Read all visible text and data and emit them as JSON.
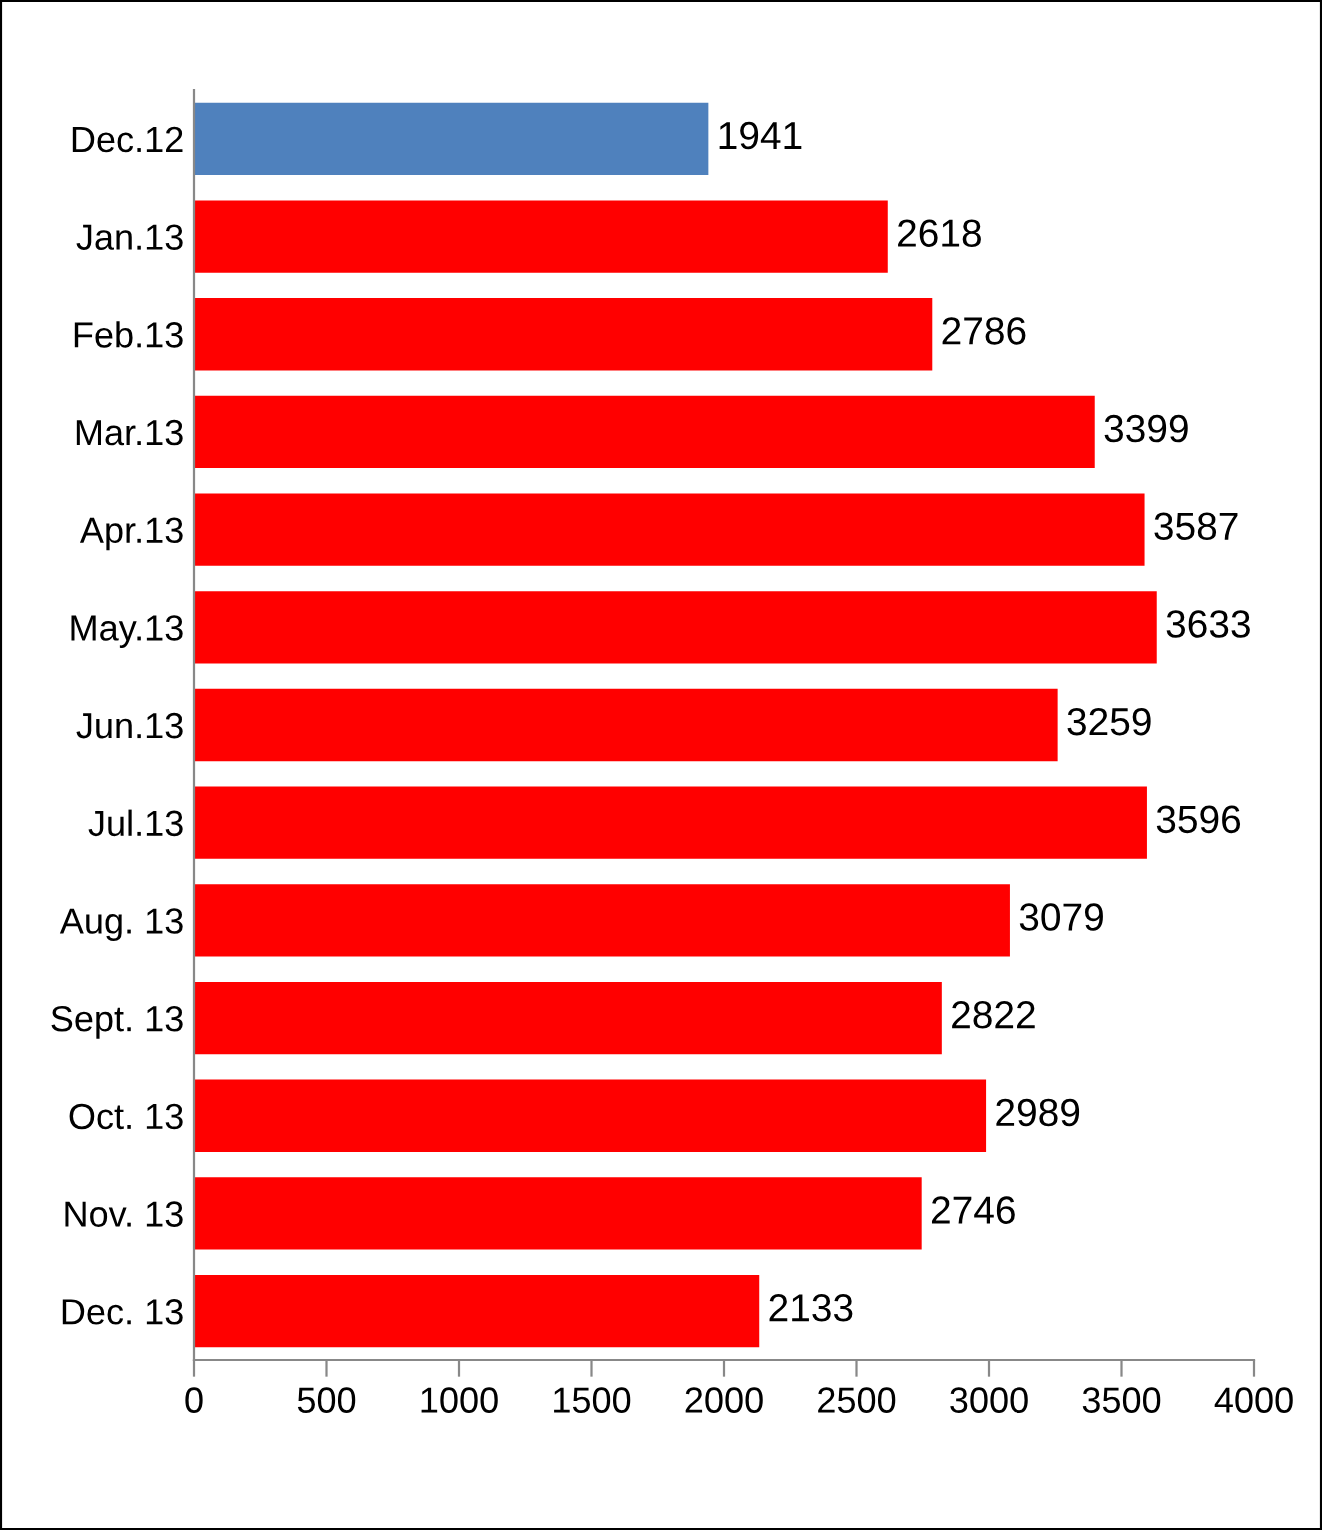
{
  "chart_data": {
    "type": "bar",
    "orientation": "horizontal",
    "categories": [
      "Dec.12",
      "Jan.13",
      "Feb.13",
      "Mar.13",
      "Apr.13",
      "May.13",
      "Jun.13",
      "Jul.13",
      "Aug. 13",
      "Sept. 13",
      "Oct. 13",
      "Nov. 13",
      "Dec. 13"
    ],
    "values": [
      1941,
      2618,
      2786,
      3399,
      3587,
      3633,
      3259,
      3596,
      3079,
      2822,
      2989,
      2746,
      2133
    ],
    "colors": [
      "#4f81bd",
      "#ff0000",
      "#ff0000",
      "#ff0000",
      "#ff0000",
      "#ff0000",
      "#ff0000",
      "#ff0000",
      "#ff0000",
      "#ff0000",
      "#ff0000",
      "#ff0000",
      "#ff0000"
    ],
    "xlim": [
      0,
      4000
    ],
    "xticks": [
      0,
      500,
      1000,
      1500,
      2000,
      2500,
      3000,
      3500,
      4000
    ],
    "data_labels": true,
    "grid": false
  }
}
